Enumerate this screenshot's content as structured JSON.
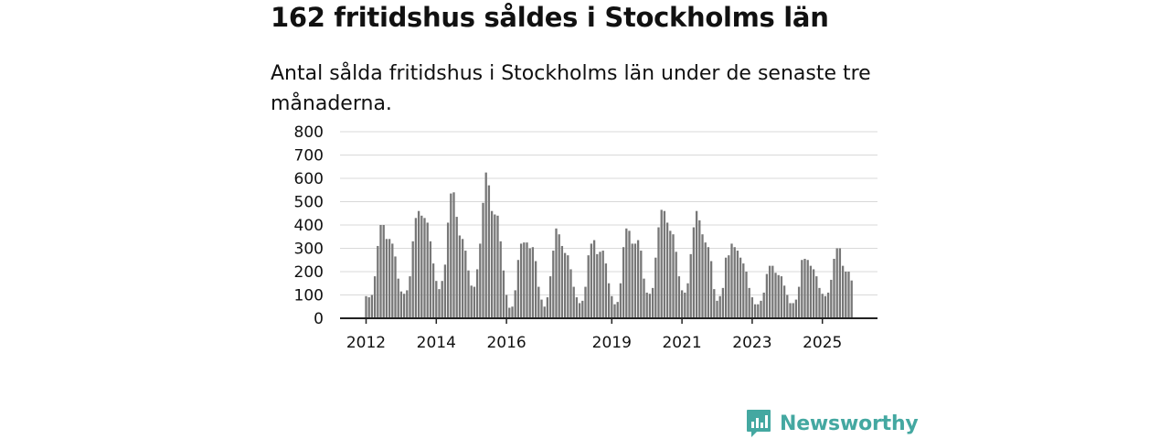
{
  "page": {
    "title": "162 fritidshus såldes i Stockholms län",
    "subtitle": "Antal sålda fritidshus i Stockholms län under de senaste tre månaderna.",
    "brand": "Newsworthy"
  },
  "colors": {
    "bar": "#777777",
    "highlight": "#3aa6a0",
    "grid": "#d9d9d9",
    "axis": "#222222",
    "brand": "#44a8a1"
  },
  "chart_data": {
    "type": "bar",
    "title": "162 fritidshus såldes i Stockholms län",
    "subtitle": "Antal sålda fritidshus i Stockholms län under de senaste tre månaderna.",
    "xlabel": "",
    "ylabel": "",
    "ylim": [
      0,
      800
    ],
    "yticks": [
      0,
      100,
      200,
      300,
      400,
      500,
      600,
      700,
      800
    ],
    "grid": true,
    "legend": "none",
    "x_start": "2012-01",
    "interval": "month",
    "xtick_labels": [
      {
        "label": "2012",
        "index": 0
      },
      {
        "label": "2014",
        "index": 24
      },
      {
        "label": "2016",
        "index": 48
      },
      {
        "label": "2019",
        "index": 84
      },
      {
        "label": "2021",
        "index": 108
      },
      {
        "label": "2023",
        "index": 132
      },
      {
        "label": "2025",
        "index": 156
      }
    ],
    "highlight_index": 167,
    "highlight_label": "162",
    "values": [
      95,
      90,
      100,
      180,
      310,
      400,
      400,
      340,
      340,
      320,
      265,
      170,
      115,
      105,
      120,
      180,
      330,
      430,
      460,
      440,
      430,
      410,
      330,
      235,
      160,
      125,
      160,
      230,
      410,
      535,
      540,
      435,
      355,
      340,
      290,
      205,
      140,
      135,
      210,
      320,
      495,
      625,
      570,
      460,
      445,
      440,
      330,
      205,
      100,
      45,
      50,
      120,
      250,
      320,
      325,
      325,
      300,
      305,
      245,
      135,
      80,
      50,
      90,
      180,
      290,
      385,
      360,
      310,
      280,
      270,
      210,
      135,
      90,
      65,
      75,
      135,
      270,
      320,
      335,
      275,
      285,
      290,
      235,
      150,
      95,
      60,
      70,
      150,
      305,
      385,
      375,
      320,
      320,
      335,
      290,
      170,
      110,
      105,
      130,
      260,
      390,
      465,
      460,
      410,
      375,
      360,
      285,
      180,
      120,
      110,
      150,
      275,
      390,
      460,
      420,
      360,
      325,
      305,
      245,
      125,
      75,
      95,
      130,
      260,
      270,
      320,
      305,
      290,
      260,
      235,
      200,
      130,
      90,
      60,
      60,
      75,
      110,
      190,
      225,
      225,
      195,
      185,
      180,
      140,
      100,
      65,
      65,
      80,
      135,
      250,
      255,
      250,
      225,
      210,
      180,
      130,
      105,
      95,
      110,
      165,
      255,
      300,
      300,
      225,
      200,
      200,
      162
    ]
  }
}
